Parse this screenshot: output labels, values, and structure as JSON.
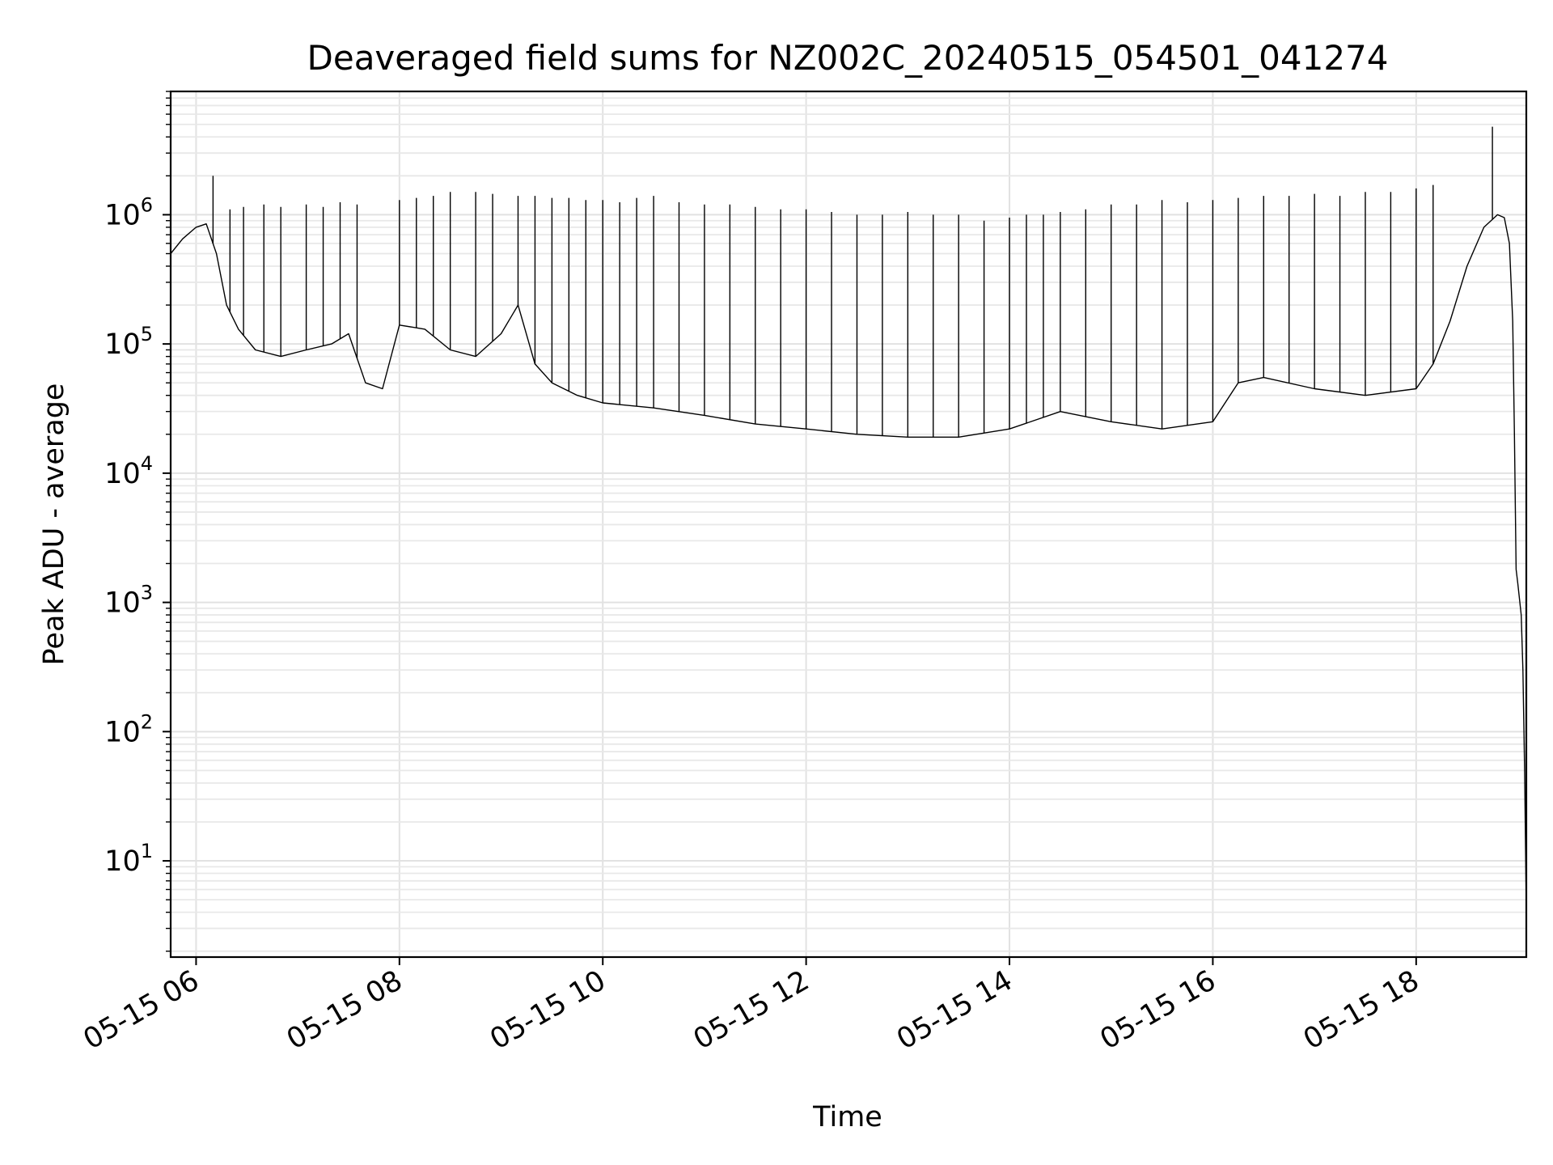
{
  "chart_data": {
    "type": "line",
    "title": "Deaveraged field sums for NZ002C_20240515_054501_041274",
    "xlabel": "Time",
    "ylabel": "Peak ADU - average",
    "yscale": "log",
    "ylim": [
      1.8,
      9000000
    ],
    "xlim": [
      "2024-05-15 05:45",
      "2024-05-15 19:05"
    ],
    "x_ticks": [
      {
        "time": "2024-05-15 06:00",
        "label": "05-15 06"
      },
      {
        "time": "2024-05-15 08:00",
        "label": "05-15 08"
      },
      {
        "time": "2024-05-15 10:00",
        "label": "05-15 10"
      },
      {
        "time": "2024-05-15 12:00",
        "label": "05-15 12"
      },
      {
        "time": "2024-05-15 14:00",
        "label": "05-15 14"
      },
      {
        "time": "2024-05-15 16:00",
        "label": "05-15 16"
      },
      {
        "time": "2024-05-15 18:00",
        "label": "05-15 18"
      }
    ],
    "y_ticks": [
      {
        "value": 10,
        "base": "10",
        "exp": "1"
      },
      {
        "value": 100,
        "base": "10",
        "exp": "2"
      },
      {
        "value": 1000,
        "base": "10",
        "exp": "3"
      },
      {
        "value": 10000,
        "base": "10",
        "exp": "4"
      },
      {
        "value": 100000,
        "base": "10",
        "exp": "5"
      },
      {
        "value": 1000000,
        "base": "10",
        "exp": "6"
      }
    ],
    "grid": true,
    "legend": "none",
    "line_color": "#000000",
    "series": [
      {
        "time": [
          "2024-05-15 05:45",
          "2024-05-15 05:52",
          "2024-05-15 06:00",
          "2024-05-15 06:06",
          "2024-05-15 06:12",
          "2024-05-15 06:18",
          "2024-05-15 06:25",
          "2024-05-15 06:35",
          "2024-05-15 06:50",
          "2024-05-15 07:05",
          "2024-05-15 07:20",
          "2024-05-15 07:30",
          "2024-05-15 07:40",
          "2024-05-15 07:50",
          "2024-05-15 08:00",
          "2024-05-15 08:15",
          "2024-05-15 08:30",
          "2024-05-15 08:45",
          "2024-05-15 09:00",
          "2024-05-15 09:10",
          "2024-05-15 09:20",
          "2024-05-15 09:30",
          "2024-05-15 09:45",
          "2024-05-15 10:00",
          "2024-05-15 10:30",
          "2024-05-15 11:00",
          "2024-05-15 11:30",
          "2024-05-15 12:00",
          "2024-05-15 12:30",
          "2024-05-15 13:00",
          "2024-05-15 13:30",
          "2024-05-15 14:00",
          "2024-05-15 14:30",
          "2024-05-15 15:00",
          "2024-05-15 15:30",
          "2024-05-15 16:00",
          "2024-05-15 16:15",
          "2024-05-15 16:30",
          "2024-05-15 17:00",
          "2024-05-15 17:30",
          "2024-05-15 18:00",
          "2024-05-15 18:10",
          "2024-05-15 18:20",
          "2024-05-15 18:30",
          "2024-05-15 18:40",
          "2024-05-15 18:48",
          "2024-05-15 18:52",
          "2024-05-15 18:55",
          "2024-05-15 18:57",
          "2024-05-15 18:58",
          "2024-05-15 18:59",
          "2024-05-15 19:00",
          "2024-05-15 19:02",
          "2024-05-15 19:03",
          "2024-05-15 19:04",
          "2024-05-15 19:05"
        ],
        "values": [
          500000,
          650000,
          800000,
          850000,
          500000,
          200000,
          130000,
          90000,
          80000,
          90000,
          100000,
          120000,
          50000,
          45000,
          140000,
          130000,
          90000,
          80000,
          120000,
          200000,
          70000,
          50000,
          40000,
          35000,
          32000,
          28000,
          24000,
          22000,
          20000,
          19000,
          19000,
          22000,
          30000,
          25000,
          22000,
          25000,
          50000,
          55000,
          45000,
          40000,
          45000,
          70000,
          150000,
          400000,
          800000,
          1000000,
          950000,
          600000,
          150000,
          20000,
          1800,
          1400,
          800,
          300,
          50,
          4
        ]
      }
    ],
    "spikes": {
      "time": [
        "2024-05-15 06:10",
        "2024-05-15 06:20",
        "2024-05-15 06:28",
        "2024-05-15 06:40",
        "2024-05-15 06:50",
        "2024-05-15 07:05",
        "2024-05-15 07:15",
        "2024-05-15 07:25",
        "2024-05-15 07:35",
        "2024-05-15 08:00",
        "2024-05-15 08:10",
        "2024-05-15 08:20",
        "2024-05-15 08:30",
        "2024-05-15 08:45",
        "2024-05-15 08:55",
        "2024-05-15 09:10",
        "2024-05-15 09:20",
        "2024-05-15 09:30",
        "2024-05-15 09:40",
        "2024-05-15 09:50",
        "2024-05-15 10:00",
        "2024-05-15 10:10",
        "2024-05-15 10:20",
        "2024-05-15 10:30",
        "2024-05-15 10:45",
        "2024-05-15 11:00",
        "2024-05-15 11:15",
        "2024-05-15 11:30",
        "2024-05-15 11:45",
        "2024-05-15 12:00",
        "2024-05-15 12:15",
        "2024-05-15 12:30",
        "2024-05-15 12:45",
        "2024-05-15 13:00",
        "2024-05-15 13:15",
        "2024-05-15 13:30",
        "2024-05-15 13:45",
        "2024-05-15 14:00",
        "2024-05-15 14:10",
        "2024-05-15 14:20",
        "2024-05-15 14:30",
        "2024-05-15 14:45",
        "2024-05-15 15:00",
        "2024-05-15 15:15",
        "2024-05-15 15:30",
        "2024-05-15 15:45",
        "2024-05-15 16:00",
        "2024-05-15 16:15",
        "2024-05-15 16:30",
        "2024-05-15 16:45",
        "2024-05-15 17:00",
        "2024-05-15 17:15",
        "2024-05-15 17:30",
        "2024-05-15 17:45",
        "2024-05-15 18:00",
        "2024-05-15 18:10",
        "2024-05-15 18:45"
      ],
      "peak": [
        2000000,
        1100000,
        1150000,
        1200000,
        1150000,
        1200000,
        1150000,
        1250000,
        1200000,
        1300000,
        1350000,
        1400000,
        1500000,
        1500000,
        1450000,
        1400000,
        1400000,
        1350000,
        1350000,
        1300000,
        1300000,
        1250000,
        1350000,
        1400000,
        1250000,
        1200000,
        1200000,
        1150000,
        1100000,
        1100000,
        1050000,
        1000000,
        1000000,
        1050000,
        1000000,
        1000000,
        900000,
        950000,
        1000000,
        1000000,
        1050000,
        1100000,
        1200000,
        1200000,
        1300000,
        1250000,
        1300000,
        1350000,
        1400000,
        1400000,
        1450000,
        1400000,
        1500000,
        1500000,
        1600000,
        1700000,
        4800000
      ]
    }
  }
}
